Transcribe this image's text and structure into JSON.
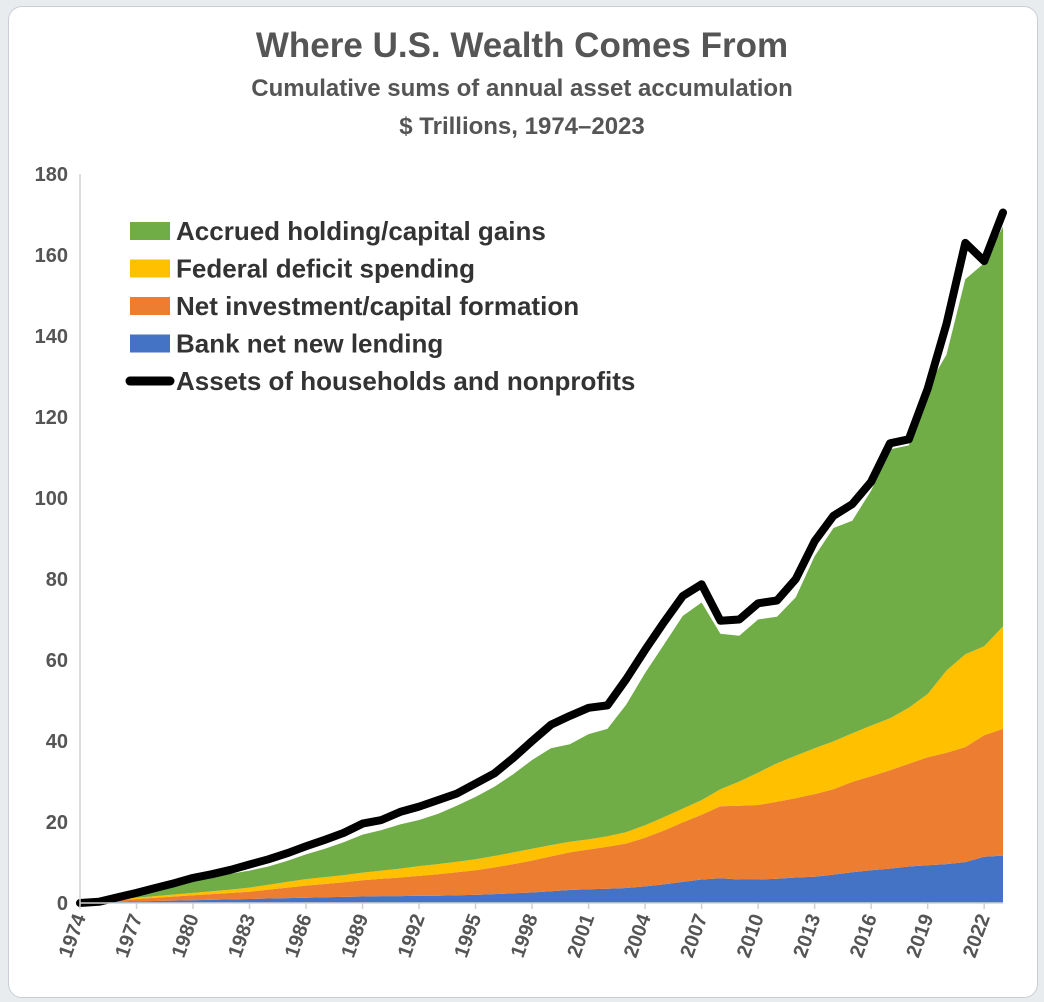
{
  "chart_data": {
    "type": "area",
    "title": "Where U.S. Wealth Comes From",
    "subtitle": "Cumulative sums of annual asset accumulation",
    "subtitle2": "$ Trillions, 1974–2023",
    "xlabel": "",
    "ylabel": "",
    "ylim": [
      0,
      180
    ],
    "y_ticks": [
      "0",
      "20",
      "40",
      "60",
      "80",
      "100",
      "120",
      "140",
      "160",
      "180"
    ],
    "x_ticks": [
      "1974",
      "1977",
      "1980",
      "1983",
      "1986",
      "1989",
      "1992",
      "1995",
      "1998",
      "2001",
      "2004",
      "2007",
      "2010",
      "2013",
      "2016",
      "2019",
      "2022"
    ],
    "grid": false,
    "legend_position": "top-left",
    "stacked": true,
    "x": [
      1974,
      1975,
      1976,
      1977,
      1978,
      1979,
      1980,
      1981,
      1982,
      1983,
      1984,
      1985,
      1986,
      1987,
      1988,
      1989,
      1990,
      1991,
      1992,
      1993,
      1994,
      1995,
      1996,
      1997,
      1998,
      1999,
      2000,
      2001,
      2002,
      2003,
      2004,
      2005,
      2006,
      2007,
      2008,
      2009,
      2010,
      2011,
      2012,
      2013,
      2014,
      2015,
      2016,
      2017,
      2018,
      2019,
      2020,
      2021,
      2022,
      2023
    ],
    "series": [
      {
        "name": "Bank net new lending",
        "color": "#4472c4",
        "values": [
          0,
          0.1,
          0.3,
          0.4,
          0.5,
          0.6,
          0.7,
          0.8,
          0.9,
          1.0,
          1.1,
          1.2,
          1.3,
          1.4,
          1.5,
          1.6,
          1.7,
          1.7,
          1.8,
          1.8,
          1.9,
          2.0,
          2.2,
          2.4,
          2.6,
          2.9,
          3.2,
          3.4,
          3.5,
          3.7,
          4.1,
          4.6,
          5.2,
          5.8,
          6.1,
          5.8,
          5.8,
          6.0,
          6.3,
          6.5,
          7.0,
          7.6,
          8.1,
          8.5,
          9.0,
          9.3,
          9.6,
          10.1,
          11.4,
          11.7
        ]
      },
      {
        "name": "Net investment/capital formation",
        "color": "#ed7d31",
        "values": [
          0,
          0.2,
          0.4,
          0.6,
          0.8,
          1.0,
          1.2,
          1.4,
          1.6,
          1.8,
          2.2,
          2.6,
          3.0,
          3.3,
          3.6,
          4.0,
          4.3,
          4.6,
          4.9,
          5.3,
          5.7,
          6.1,
          6.6,
          7.2,
          7.9,
          8.6,
          9.3,
          9.8,
          10.4,
          11.0,
          12.0,
          13.3,
          14.7,
          16.0,
          17.8,
          18.2,
          18.4,
          19.0,
          19.6,
          20.4,
          21.1,
          22.3,
          23.2,
          24.3,
          25.4,
          26.7,
          27.5,
          28.4,
          30.0,
          31.3
        ]
      },
      {
        "name": "Federal deficit spending",
        "color": "#ffc000",
        "values": [
          0,
          0.1,
          0.2,
          0.3,
          0.4,
          0.5,
          0.6,
          0.7,
          0.8,
          1.0,
          1.2,
          1.4,
          1.6,
          1.7,
          1.8,
          1.9,
          2.0,
          2.2,
          2.4,
          2.5,
          2.6,
          2.7,
          2.8,
          2.9,
          2.9,
          2.8,
          2.6,
          2.5,
          2.6,
          2.8,
          3.1,
          3.3,
          3.4,
          3.6,
          4.2,
          6.0,
          8.0,
          9.5,
          10.5,
          11.3,
          11.8,
          12.0,
          12.5,
          12.8,
          13.8,
          15.6,
          20.3,
          22.9,
          22.0,
          25.3
        ]
      },
      {
        "name": "Accrued holding/capital gains",
        "color": "#70ad47",
        "values": [
          0,
          0.5,
          1.0,
          1.4,
          2.0,
          2.6,
          3.1,
          3.5,
          3.9,
          4.2,
          4.5,
          5.2,
          6.1,
          7.0,
          8.1,
          9.4,
          10.0,
          10.9,
          11.4,
          12.4,
          13.8,
          15.4,
          17.1,
          19.3,
          21.9,
          23.9,
          24.1,
          26.0,
          26.5,
          31.5,
          37.6,
          42.6,
          47.6,
          48.8,
          38.4,
          36.0,
          37.8,
          36.2,
          39.1,
          47.4,
          52.7,
          52.5,
          58.0,
          66.4,
          64.8,
          75.8,
          78.0,
          92.6,
          94.6,
          98.7
        ]
      }
    ],
    "total_line": {
      "name": "Assets of households and nonprofits",
      "color": "#000000",
      "values": [
        0,
        0.3,
        1.4,
        2.5,
        3.7,
        4.9,
        6.2,
        7.1,
        8.2,
        9.5,
        10.8,
        12.3,
        14.0,
        15.6,
        17.3,
        19.6,
        20.5,
        22.5,
        23.8,
        25.4,
        27.0,
        29.5,
        32.0,
        35.8,
        40.0,
        44.0,
        46.2,
        48.2,
        48.8,
        55.3,
        62.5,
        69.3,
        75.8,
        78.7,
        69.7,
        70.0,
        74.0,
        74.7,
        80.0,
        89.3,
        95.6,
        98.5,
        104.0,
        113.5,
        114.5,
        127.0,
        143.0,
        163.0,
        158.5,
        170.5
      ]
    }
  }
}
